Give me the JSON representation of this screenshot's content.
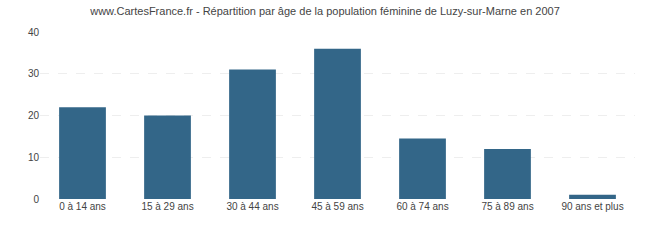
{
  "chart_data": {
    "type": "bar",
    "title": "www.CartesFrance.fr - Répartition par âge de la population féminine de Luzy-sur-Marne en 2007",
    "categories": [
      "0 à 14 ans",
      "15 à 29 ans",
      "30 à 44 ans",
      "45 à 59 ans",
      "60 à 74 ans",
      "75 à 89 ans",
      "90 ans et plus"
    ],
    "values": [
      22,
      20,
      31,
      36,
      14.5,
      12,
      1
    ],
    "color": "#336688",
    "ylim": [
      0,
      40
    ],
    "yticks": [
      0,
      10,
      20,
      30,
      40
    ],
    "grid": true
  }
}
